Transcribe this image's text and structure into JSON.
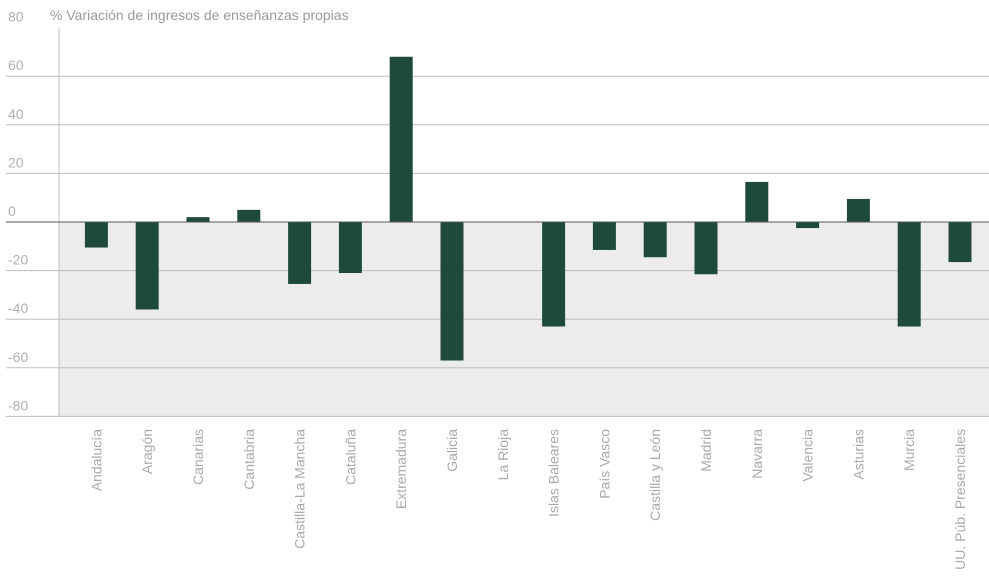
{
  "chart_data": {
    "type": "bar",
    "title": "% Variación de ingresos de enseñanzas propias",
    "xlabel": "",
    "ylabel": "",
    "ylim": [
      -80,
      80
    ],
    "yticks": [
      80,
      60,
      40,
      20,
      0,
      -20,
      -40,
      -60,
      -80
    ],
    "categories": [
      "Andalucía",
      "Aragón",
      "Canarias",
      "Cantabria",
      "Castilla-La Mancha",
      "Cataluña",
      "Extremadura",
      "Galicia",
      "La Rioja",
      "Islas Baleares",
      "País Vasco",
      "Castilla y León",
      "Madrid",
      "Navarra",
      "Valencia",
      "Asturias",
      "Murcia",
      "UU. Púb. Presenciales"
    ],
    "values": [
      -10.5,
      -36,
      2,
      5,
      -25.5,
      -21,
      68,
      -57,
      0,
      -43,
      -11.5,
      -14.5,
      -21.5,
      16.5,
      -2.5,
      9.5,
      -43,
      -16.5
    ],
    "colors": {
      "bar": "#1e4a3d",
      "negative_band": "#ececec",
      "grid": "#bdbdbd",
      "zero_line": "#555555"
    },
    "grid": true,
    "legend": "none"
  }
}
